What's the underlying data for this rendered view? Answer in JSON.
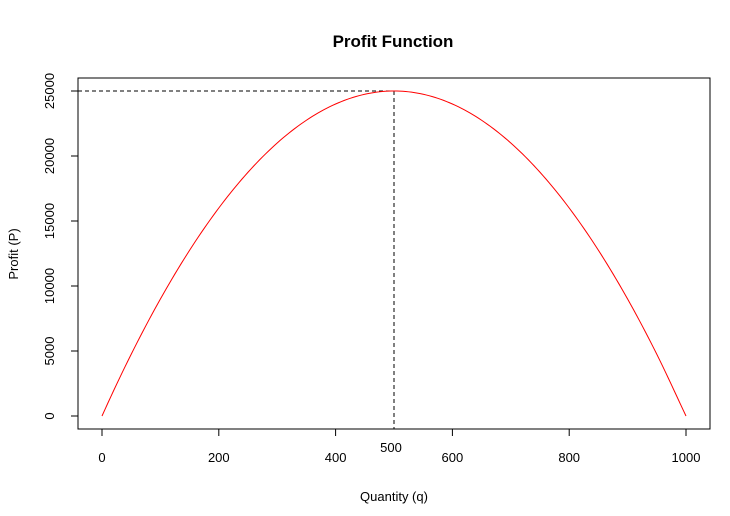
{
  "chart_data": {
    "type": "line",
    "title": "Profit Function",
    "xlabel": "Quantity (q)",
    "ylabel": "Profit (P)",
    "xlim": [
      0,
      1000
    ],
    "ylim": [
      0,
      25000
    ],
    "x_ticks": [
      0,
      200,
      400,
      600,
      800,
      1000
    ],
    "y_ticks": [
      0,
      5000,
      10000,
      15000,
      20000,
      25000
    ],
    "series": [
      {
        "color": "#ff0000",
        "x": [
          0,
          50,
          100,
          150,
          200,
          250,
          300,
          350,
          400,
          450,
          500,
          550,
          600,
          650,
          700,
          750,
          800,
          850,
          900,
          950,
          1000
        ],
        "values": [
          0,
          4750,
          9000,
          12750,
          16000,
          18750,
          21000,
          22750,
          24000,
          24750,
          25000,
          24750,
          24000,
          22750,
          21000,
          18750,
          16000,
          12750,
          9000,
          4750,
          0
        ]
      }
    ],
    "annotations": {
      "max_point": {
        "x": 500,
        "y": 25000
      },
      "max_label": "500",
      "line_style": "dashed"
    },
    "grid": false,
    "legend": "none"
  }
}
